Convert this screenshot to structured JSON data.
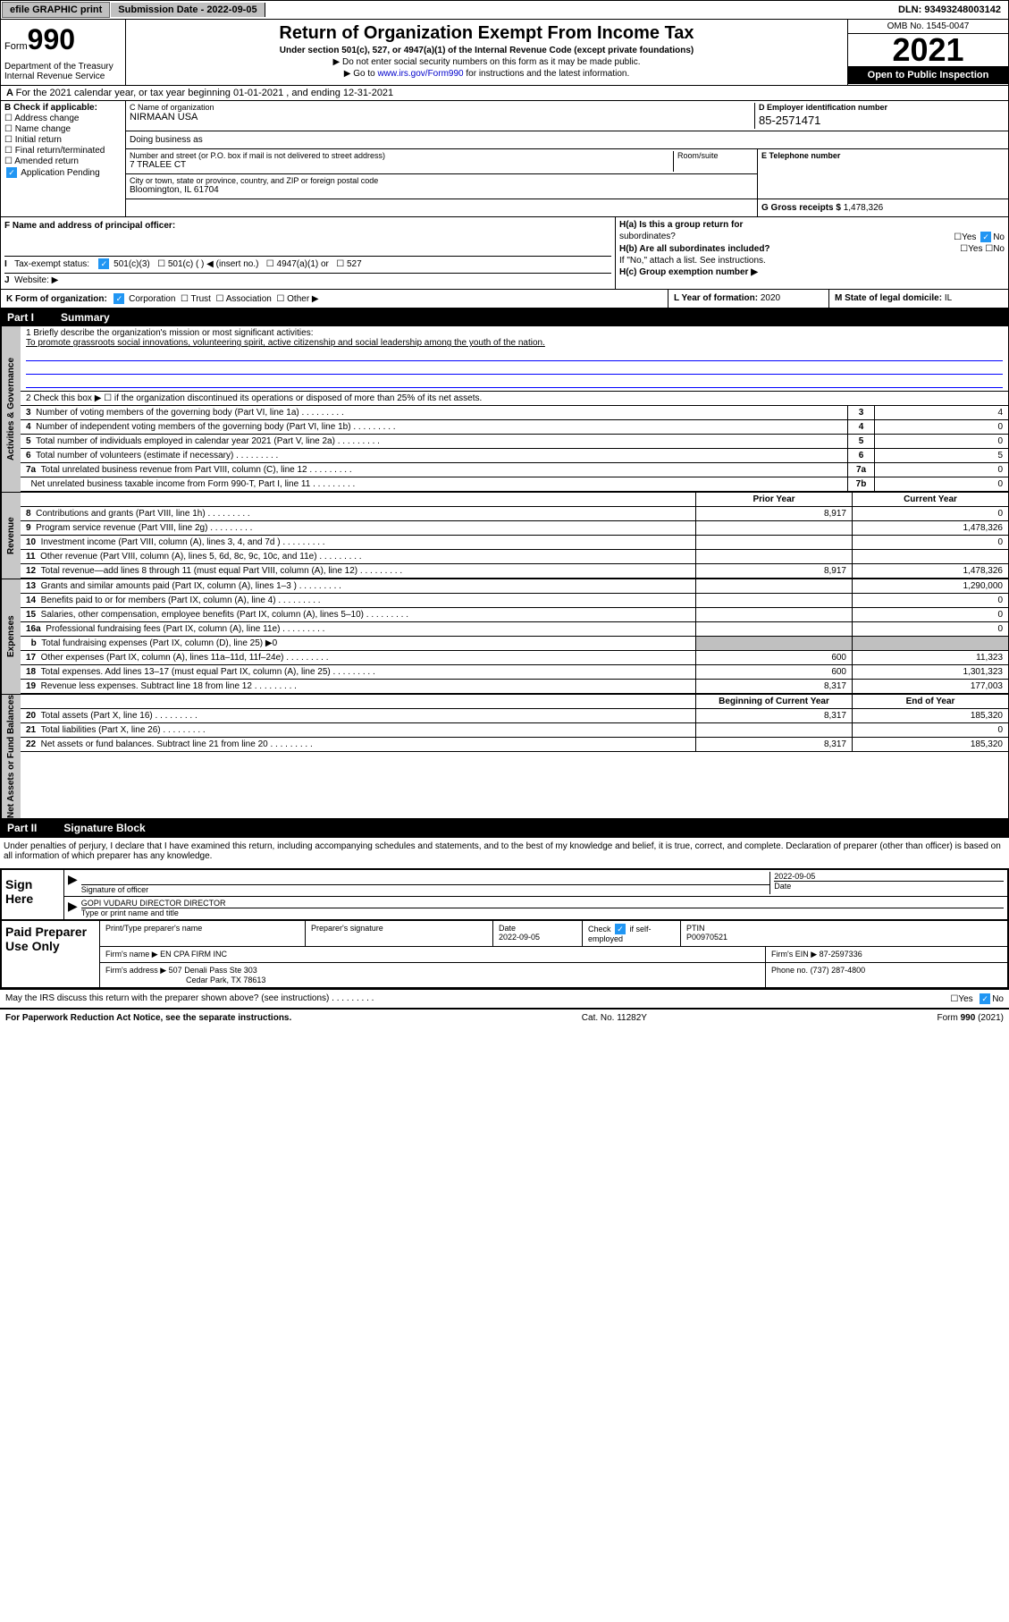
{
  "top": {
    "efile": "efile GRAPHIC print",
    "submission_label": "Submission Date - 2022-09-05",
    "dln": "DLN: 93493248003142"
  },
  "header": {
    "form_prefix": "Form",
    "form_number": "990",
    "title": "Return of Organization Exempt From Income Tax",
    "subtitle": "Under section 501(c), 527, or 4947(a)(1) of the Internal Revenue Code (except private foundations)",
    "note1": "▶ Do not enter social security numbers on this form as it may be made public.",
    "note2_prefix": "▶ Go to ",
    "note2_link": "www.irs.gov/Form990",
    "note2_suffix": " for instructions and the latest information.",
    "dept": "Department of the Treasury Internal Revenue Service",
    "omb": "OMB No. 1545-0047",
    "year": "2021",
    "open": "Open to Public Inspection"
  },
  "section_a": "For the 2021 calendar year, or tax year beginning 01-01-2021   , and ending 12-31-2021",
  "checkb": {
    "title": "B Check if applicable:",
    "items": [
      "Address change",
      "Name change",
      "Initial return",
      "Final return/terminated",
      "Amended return",
      "Application Pending"
    ]
  },
  "org": {
    "c_label": "C Name of organization",
    "name": "NIRMAAN USA",
    "dba_label": "Doing business as",
    "street_label": "Number and street (or P.O. box if mail is not delivered to street address)",
    "room_label": "Room/suite",
    "street": "7 TRALEE CT",
    "city_label": "City or town, state or province, country, and ZIP or foreign postal code",
    "city": "Bloomington, IL  61704",
    "d_label": "D Employer identification number",
    "ein": "85-2571471",
    "e_label": "E Telephone number",
    "g_label": "G Gross receipts $",
    "gross": "1,478,326",
    "f_label": "F  Name and address of principal officer:"
  },
  "hg": {
    "ha_label": "H(a)  Is this a group return for",
    "ha_sub": "subordinates?",
    "hb_label": "H(b)  Are all subordinates included?",
    "hb_note": "If \"No,\" attach a list. See instructions.",
    "hc_label": "H(c)  Group exemption number ▶",
    "yes": "Yes",
    "no": "No"
  },
  "taxstatus": {
    "i_label": "Tax-exempt status:",
    "opts": [
      "501(c)(3)",
      "501(c) (  ) ◀ (insert no.)",
      "4947(a)(1) or",
      "527"
    ],
    "j_label": "Website: ▶"
  },
  "klm": {
    "k": "K Form of organization:",
    "k_opts": [
      "Corporation",
      "Trust",
      "Association",
      "Other ▶"
    ],
    "l_label": "L Year of formation:",
    "l_val": "2020",
    "m_label": "M State of legal domicile:",
    "m_val": "IL"
  },
  "part1": {
    "label": "Part I",
    "title": "Summary"
  },
  "activities": {
    "tab": "Activities & Governance",
    "q1": "1  Briefly describe the organization's mission or most significant activities:",
    "mission": "To promote grassroots social innovations, volunteering spirit, active citizenship and social leadership among the youth of the nation.",
    "q2": "2   Check this box ▶ ☐  if the organization discontinued its operations or disposed of more than 25% of its net assets.",
    "rows": [
      {
        "n": "3",
        "t": "Number of voting members of the governing body (Part VI, line 1a)",
        "r": "3",
        "v": "4"
      },
      {
        "n": "4",
        "t": "Number of independent voting members of the governing body (Part VI, line 1b)",
        "r": "4",
        "v": "0"
      },
      {
        "n": "5",
        "t": "Total number of individuals employed in calendar year 2021 (Part V, line 2a)",
        "r": "5",
        "v": "0"
      },
      {
        "n": "6",
        "t": "Total number of volunteers (estimate if necessary)",
        "r": "6",
        "v": "5"
      },
      {
        "n": "7a",
        "t": "Total unrelated business revenue from Part VIII, column (C), line 12",
        "r": "7a",
        "v": "0"
      },
      {
        "n": "",
        "t": "Net unrelated business taxable income from Form 990-T, Part I, line 11",
        "r": "7b",
        "v": "0"
      }
    ]
  },
  "fin_hdr": {
    "c1": "Prior Year",
    "c2": "Current Year"
  },
  "revenue": {
    "tab": "Revenue",
    "rows": [
      {
        "n": "8",
        "t": "Contributions and grants (Part VIII, line 1h)",
        "v1": "8,917",
        "v2": "0"
      },
      {
        "n": "9",
        "t": "Program service revenue (Part VIII, line 2g)",
        "v1": "",
        "v2": "1,478,326"
      },
      {
        "n": "10",
        "t": "Investment income (Part VIII, column (A), lines 3, 4, and 7d )",
        "v1": "",
        "v2": "0"
      },
      {
        "n": "11",
        "t": "Other revenue (Part VIII, column (A), lines 5, 6d, 8c, 9c, 10c, and 11e)",
        "v1": "",
        "v2": ""
      },
      {
        "n": "12",
        "t": "Total revenue—add lines 8 through 11 (must equal Part VIII, column (A), line 12)",
        "v1": "8,917",
        "v2": "1,478,326"
      }
    ]
  },
  "expenses": {
    "tab": "Expenses",
    "rows": [
      {
        "n": "13",
        "t": "Grants and similar amounts paid (Part IX, column (A), lines 1–3 )",
        "v1": "",
        "v2": "1,290,000"
      },
      {
        "n": "14",
        "t": "Benefits paid to or for members (Part IX, column (A), line 4)",
        "v1": "",
        "v2": "0"
      },
      {
        "n": "15",
        "t": "Salaries, other compensation, employee benefits (Part IX, column (A), lines 5–10)",
        "v1": "",
        "v2": "0"
      },
      {
        "n": "16a",
        "t": "Professional fundraising fees (Part IX, column (A), line 11e)",
        "v1": "",
        "v2": "0"
      },
      {
        "n": "b",
        "t": "Total fundraising expenses (Part IX, column (D), line 25) ▶0",
        "shaded": true
      },
      {
        "n": "17",
        "t": "Other expenses (Part IX, column (A), lines 11a–11d, 11f–24e)",
        "v1": "600",
        "v2": "11,323"
      },
      {
        "n": "18",
        "t": "Total expenses. Add lines 13–17 (must equal Part IX, column (A), line 25)",
        "v1": "600",
        "v2": "1,301,323"
      },
      {
        "n": "19",
        "t": "Revenue less expenses. Subtract line 18 from line 12",
        "v1": "8,317",
        "v2": "177,003"
      }
    ]
  },
  "net_hdr": {
    "c1": "Beginning of Current Year",
    "c2": "End of Year"
  },
  "netassets": {
    "tab": "Net Assets or Fund Balances",
    "rows": [
      {
        "n": "20",
        "t": "Total assets (Part X, line 16)",
        "v1": "8,317",
        "v2": "185,320"
      },
      {
        "n": "21",
        "t": "Total liabilities (Part X, line 26)",
        "v1": "",
        "v2": "0"
      },
      {
        "n": "22",
        "t": "Net assets or fund balances. Subtract line 21 from line 20",
        "v1": "8,317",
        "v2": "185,320"
      }
    ]
  },
  "part2": {
    "label": "Part II",
    "title": "Signature Block"
  },
  "sig": {
    "decl": "Under penalties of perjury, I declare that I have examined this return, including accompanying schedules and statements, and to the best of my knowledge and belief, it is true, correct, and complete. Declaration of preparer (other than officer) is based on all information of which preparer has any knowledge.",
    "sign_here": "Sign Here",
    "sig_officer": "Signature of officer",
    "date": "Date",
    "date_val": "2022-09-05",
    "name_val": "GOPI VUDARU DIRECTOR  DIRECTOR",
    "name_lbl": "Type or print name and title"
  },
  "prep": {
    "title": "Paid Preparer Use Only",
    "h1": "Print/Type preparer's name",
    "h2": "Preparer's signature",
    "h3": "Date",
    "h4": "Check ☑ if self-employed",
    "h5": "PTIN",
    "date": "2022-09-05",
    "ptin": "P00970521",
    "firm_name_lbl": "Firm's name   ▶",
    "firm_name": "EN CPA FIRM INC",
    "firm_ein_lbl": "Firm's EIN ▶",
    "firm_ein": "87-2597336",
    "firm_addr_lbl": "Firm's address ▶",
    "firm_addr1": "507 Denali Pass Ste 303",
    "firm_addr2": "Cedar Park, TX  78613",
    "phone_lbl": "Phone no.",
    "phone": "(737) 287-4800"
  },
  "footer": {
    "discuss": "May the IRS discuss this return with the preparer shown above? (see instructions)",
    "paperwork": "For Paperwork Reduction Act Notice, see the separate instructions.",
    "cat": "Cat. No. 11282Y",
    "form": "Form 990 (2021)"
  }
}
